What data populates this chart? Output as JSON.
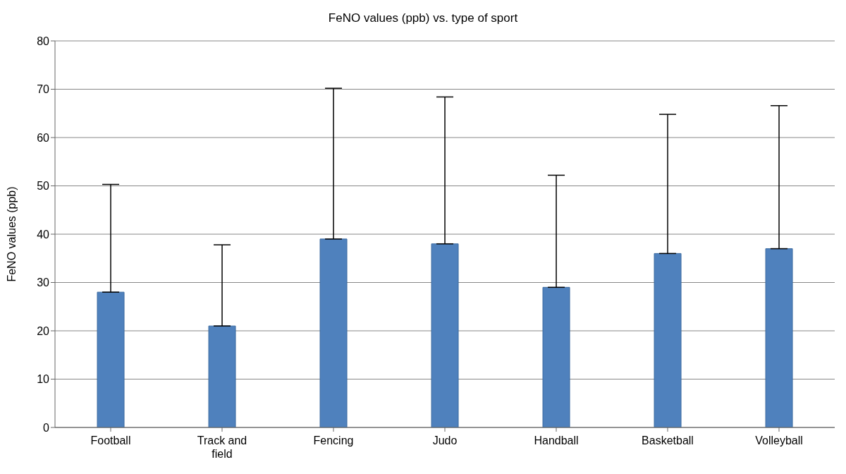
{
  "chart_data": {
    "type": "bar",
    "title": "FeNO values (ppb) vs. type of sport",
    "ylabel": "FeNO values (ppb)",
    "categories": [
      "Football",
      "Track and field",
      "Fencing",
      "Judo",
      "Handball",
      "Basketball",
      "Volleyball"
    ],
    "values": [
      28,
      21,
      39,
      38,
      29,
      36,
      37
    ],
    "errors": [
      [
        28,
        50.3
      ],
      [
        21,
        37.8
      ],
      [
        39,
        70.2
      ],
      [
        38,
        68.4
      ],
      [
        29,
        52.2
      ],
      [
        36,
        64.8
      ],
      [
        37,
        66.6
      ]
    ],
    "color": "#4f81bd",
    "ylim": [
      0,
      80
    ],
    "yticks": [
      0,
      10,
      20,
      30,
      40,
      50,
      60,
      70,
      80
    ],
    "grid": "y",
    "legend": false
  }
}
